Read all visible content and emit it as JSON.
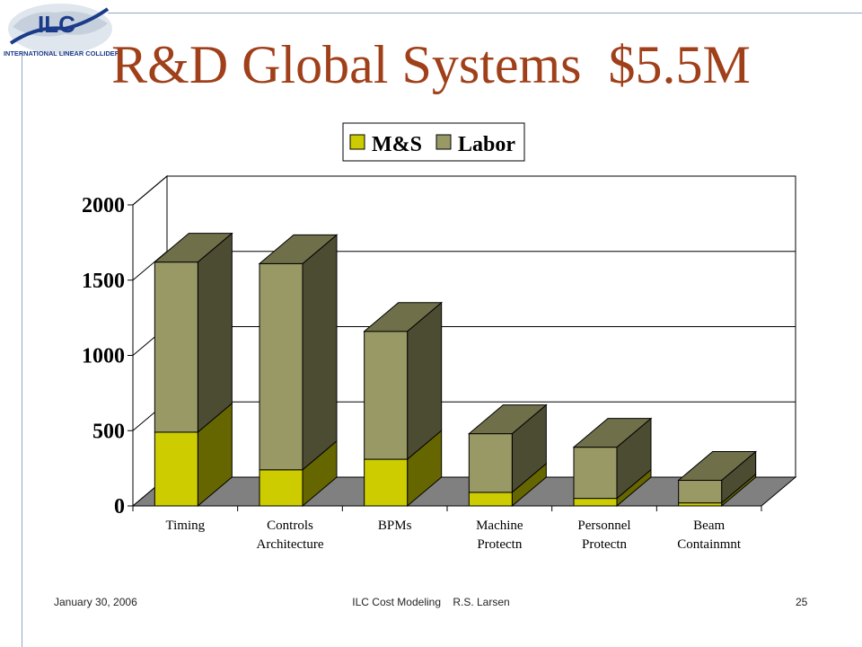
{
  "slide": {
    "title": "R&D Global Systems  $5.5M",
    "logo_text": "INTERNATIONAL LINEAR COLLIDER",
    "footer_left": "January 30, 2006",
    "footer_center": "ILC Cost Modeling    R.S. Larsen",
    "footer_right": "25"
  },
  "chart_data": {
    "type": "bar",
    "stacked": true,
    "three_d": true,
    "categories": [
      "Timing",
      "Controls Architecture",
      "BPMs",
      "Machine Protectn",
      "Personnel Protectn",
      "Beam Containmnt"
    ],
    "category_lines": [
      [
        "Timing"
      ],
      [
        "Controls",
        "Architecture"
      ],
      [
        "BPMs"
      ],
      [
        "Machine",
        "Protectn"
      ],
      [
        "Personnel",
        "Protectn"
      ],
      [
        "Beam",
        "Containmnt"
      ]
    ],
    "series": [
      {
        "name": "M&S",
        "values": [
          490,
          240,
          310,
          90,
          50,
          20
        ],
        "color": "#cccc00",
        "side_color": "#666600",
        "top_color": "#999900"
      },
      {
        "name": "Labor",
        "values": [
          1130,
          1370,
          850,
          390,
          340,
          150
        ],
        "color": "#999966",
        "side_color": "#4c4c33",
        "top_color": "#6f6f4a"
      }
    ],
    "ylim": [
      0,
      2000
    ],
    "yticks": [
      0,
      500,
      1000,
      1500,
      2000
    ],
    "grid": true,
    "legend": "top-center",
    "floor_color": "#808080"
  },
  "colors": {
    "title": "#a0401a",
    "rules": "#8fa8c8"
  }
}
